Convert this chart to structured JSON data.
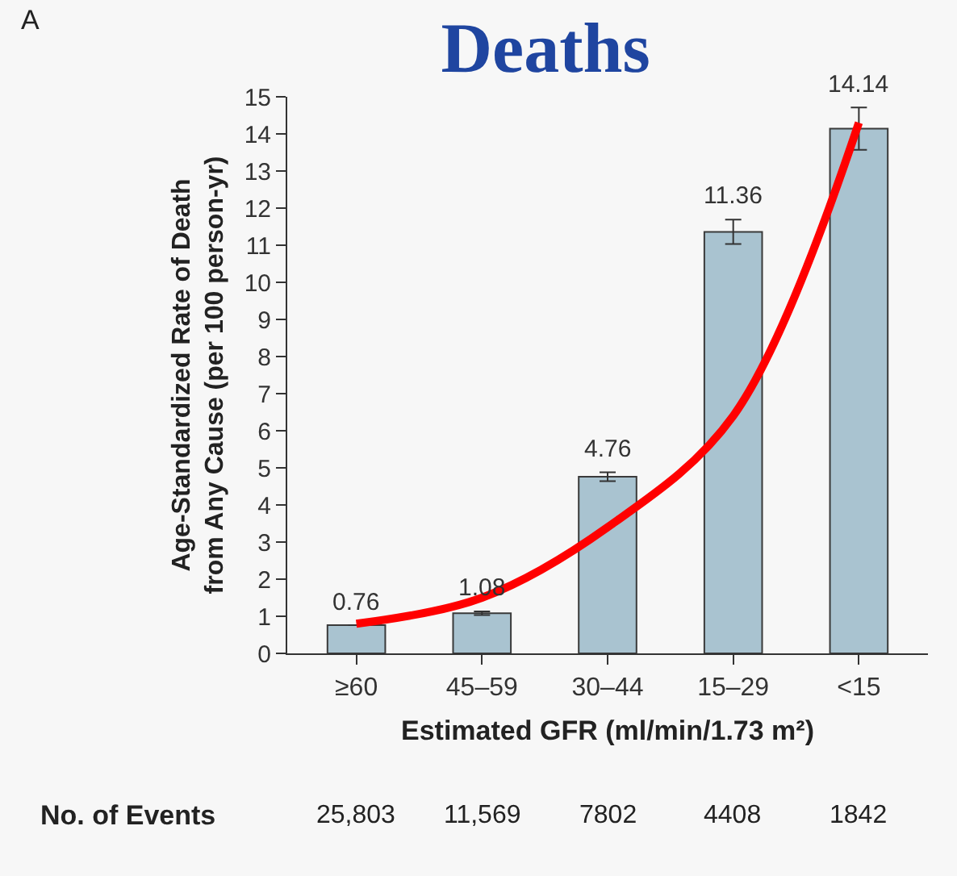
{
  "chart_data": {
    "type": "bar",
    "title": "Deaths",
    "xlabel": "Estimated GFR (ml/min/1.73 m²)",
    "ylabel": "Age-Standardized Rate of Death\nfrom Any Cause (per 100 person-yr)",
    "categories": [
      "≥60",
      "45–59",
      "30–44",
      "15–29",
      "<15"
    ],
    "series": [
      {
        "color": "#a9c3d0",
        "values": [
          0.76,
          1.08,
          4.76,
          11.36,
          14.14
        ],
        "errors": [
          null,
          0.05,
          0.12,
          0.33,
          0.57
        ],
        "value_labels": [
          "0.76",
          "1.08",
          "4.76",
          "11.36",
          "14.14"
        ]
      },
      {
        "type": "line",
        "color": "#ff0000",
        "x": [
          "≥60",
          "45–59",
          "30–44",
          "15–29",
          "<15"
        ],
        "values": [
          0.8,
          1.5,
          3.4,
          6.4,
          14.3
        ],
        "marker": "none",
        "line_style": "solid"
      }
    ],
    "ylim": [
      0,
      15
    ],
    "yticks": [
      0,
      1,
      2,
      3,
      4,
      5,
      6,
      7,
      8,
      9,
      10,
      11,
      12,
      13,
      14,
      15
    ],
    "grid": false,
    "annotations": [
      "A",
      "No. of Events",
      "25,803",
      "11,569",
      "7802",
      "4408",
      "1842"
    ]
  }
}
